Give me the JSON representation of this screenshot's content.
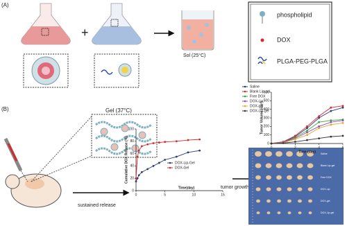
{
  "figure": {
    "panel_a": "(A)",
    "panel_b": "(B)",
    "plus": "+",
    "sol": "Sol (25°C)",
    "gel": "Gel (37°C)",
    "legend": [
      "phospholipid",
      "DOX",
      "PLGA-PEG-PLGA"
    ],
    "sustained": "sustained release",
    "inhibition": "tumor growth inhibition",
    "photo_rows": [
      "Saline",
      "Blank Lip-gel",
      "Free DOX",
      "DOX-Lip",
      "DOX-gel",
      "DOX-Lip-gel"
    ]
  },
  "chart_data": [
    {
      "type": "line",
      "xlabel": "Time(day)",
      "ylabel": "Cumulative DOX Release (%)",
      "x": [
        0,
        0.25,
        0.5,
        1,
        2,
        3,
        4,
        5,
        7,
        9,
        11
      ],
      "series": [
        {
          "name": "DOX-Lip-Gel",
          "color": "#2b3a7a",
          "values": [
            15,
            20,
            25,
            30,
            35,
            40,
            45,
            50,
            55,
            62,
            65
          ]
        },
        {
          "name": "DOX-Gel",
          "color": "#d42a2a",
          "values": [
            20,
            55,
            65,
            72,
            75,
            77,
            78,
            79,
            80,
            82,
            83
          ]
        }
      ],
      "xlim": [
        0,
        15
      ],
      "xticks": [
        0,
        5,
        10,
        15
      ],
      "ylim": [
        0,
        100
      ],
      "yticks": [
        0,
        20,
        40,
        60,
        80,
        100
      ],
      "legend": "lower right"
    },
    {
      "type": "line",
      "xlabel": "Time (day)",
      "ylabel": "Tumor Volume (cm³)",
      "x": [
        0,
        1,
        2,
        3,
        4,
        5,
        6
      ],
      "series": [
        {
          "name": "Saline",
          "color": "#2b3a7a",
          "values": [
            0,
            20,
            80,
            180,
            300,
            380,
            420
          ]
        },
        {
          "name": "Blank Lip-gel",
          "color": "#d42a2a",
          "values": [
            0,
            20,
            90,
            200,
            320,
            420,
            440
          ]
        },
        {
          "name": "Free DOX",
          "color": "#3aa63a",
          "values": [
            0,
            15,
            70,
            150,
            250,
            270,
            280
          ]
        },
        {
          "name": "DOX-Lip",
          "color": "#8a4fb8",
          "values": [
            0,
            15,
            60,
            130,
            200,
            250,
            270
          ]
        },
        {
          "name": "DOX-gel",
          "color": "#f0a030",
          "values": [
            0,
            10,
            50,
            100,
            180,
            220,
            240
          ]
        },
        {
          "name": "DOX-Lip-gel",
          "color": "#333333",
          "values": [
            0,
            5,
            20,
            40,
            60,
            80,
            90
          ]
        }
      ],
      "xlim": [
        0,
        6
      ],
      "xticks": [
        0,
        2,
        4,
        6
      ],
      "ylim": [
        0,
        600
      ],
      "yticks": [
        0,
        100,
        200,
        300,
        400,
        500,
        600
      ],
      "legend": "upper left"
    }
  ]
}
